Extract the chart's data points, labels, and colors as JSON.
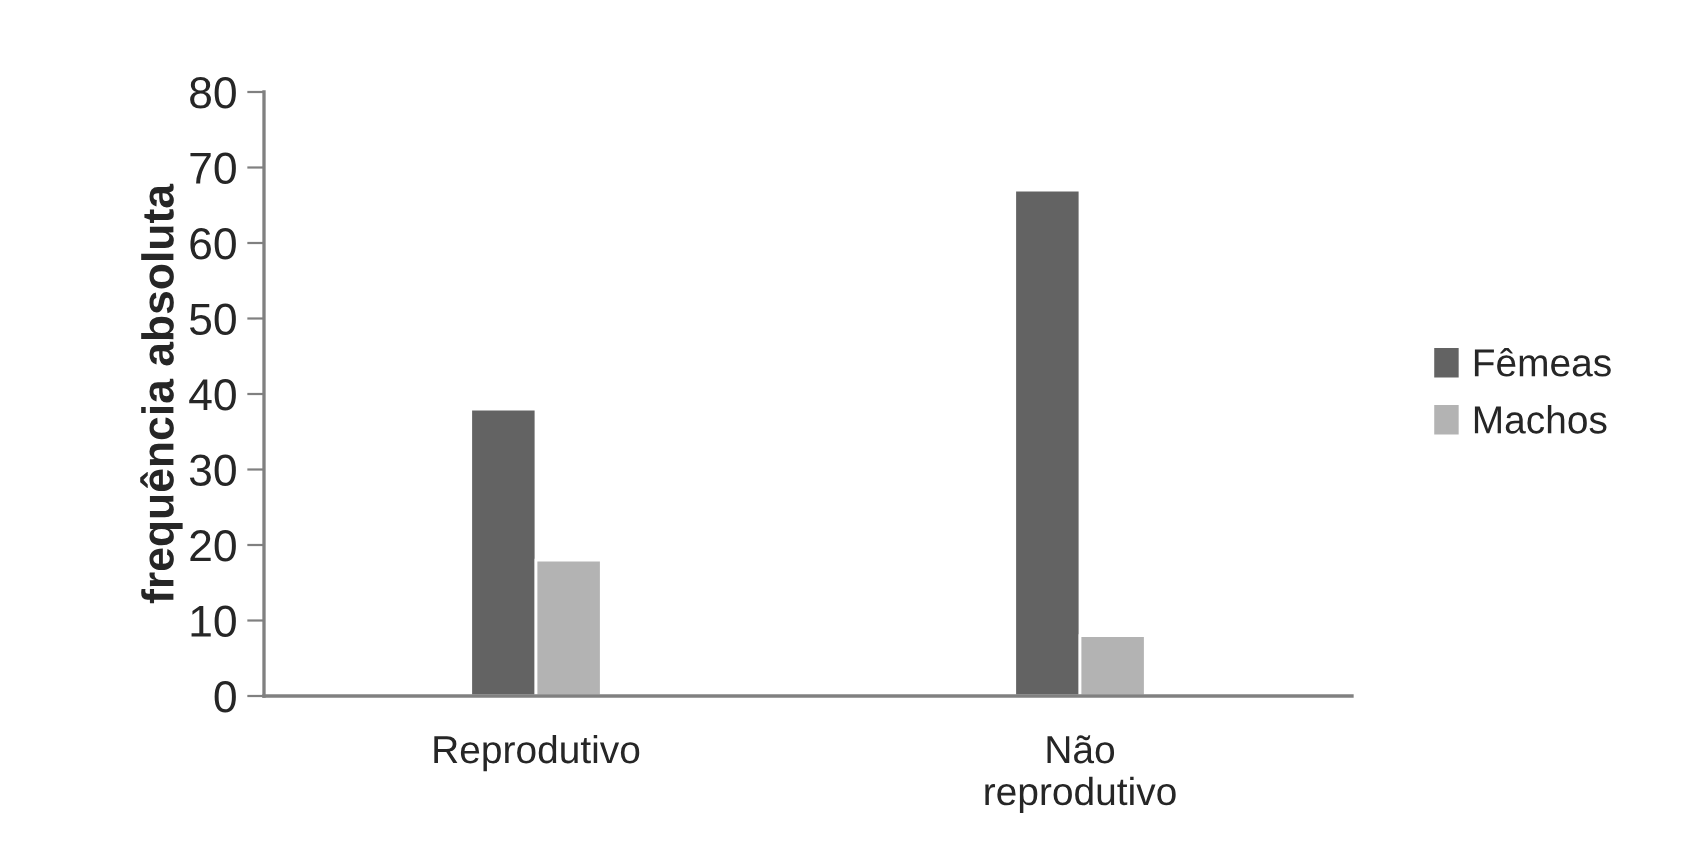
{
  "chart_data": {
    "type": "bar",
    "ylabel": "frequência absoluta",
    "categories": [
      "Reprodutivo",
      "Não\nreprodutivo"
    ],
    "series": [
      {
        "name": "Fêmeas",
        "color": "#636363",
        "values": [
          38,
          67
        ]
      },
      {
        "name": "Machos",
        "color": "#b3b3b3",
        "values": [
          18,
          8
        ]
      }
    ],
    "ylim": [
      0,
      80
    ],
    "yticks": [
      0,
      10,
      20,
      30,
      40,
      50,
      60,
      70,
      80
    ],
    "grid": false,
    "legend": "right"
  }
}
